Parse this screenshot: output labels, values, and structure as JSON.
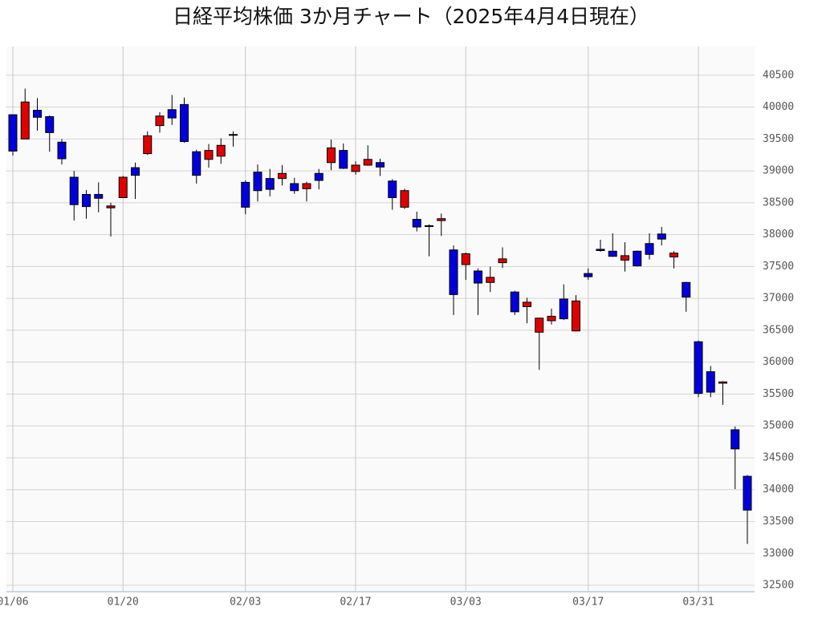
{
  "chart_data": {
    "type": "candlestick",
    "title": "日経平均株価 3か月チャート（2025年4月4日現在）",
    "categories": [
      "01/06",
      null,
      null,
      null,
      null,
      null,
      null,
      null,
      null,
      "01/20",
      null,
      null,
      null,
      null,
      null,
      null,
      null,
      null,
      null,
      "02/03",
      null,
      null,
      null,
      null,
      null,
      null,
      null,
      null,
      "02/17",
      null,
      null,
      null,
      null,
      null,
      null,
      null,
      null,
      "03/03",
      null,
      null,
      null,
      null,
      null,
      null,
      null,
      null,
      null,
      "03/17",
      null,
      null,
      null,
      null,
      null,
      null,
      null,
      null,
      "03/31",
      null,
      null,
      null,
      null
    ],
    "open": [
      39880,
      39500,
      39950,
      39850,
      39450,
      38900,
      38630,
      38630,
      38420,
      38580,
      39050,
      39270,
      39710,
      39960,
      40040,
      39300,
      39180,
      39230,
      39560,
      38820,
      38980,
      38880,
      38880,
      38800,
      38720,
      38960,
      39130,
      39320,
      38990,
      39090,
      39130,
      38840,
      38430,
      38240,
      38130,
      38220,
      37760,
      37530,
      37430,
      37250,
      37560,
      37100,
      36870,
      36470,
      36650,
      36990,
      36490,
      37390,
      37770,
      37740,
      37600,
      37740,
      37860,
      38010,
      37650,
      37250,
      36320,
      35850,
      35670,
      34940,
      34210
    ],
    "high": [
      39880,
      40290,
      40140,
      39870,
      39500,
      39000,
      38700,
      38820,
      38500,
      38920,
      39130,
      39620,
      39920,
      40190,
      40150,
      39330,
      39420,
      39510,
      39620,
      38850,
      39100,
      39030,
      39090,
      38890,
      38830,
      39030,
      39490,
      39430,
      39150,
      39400,
      39190,
      38870,
      38720,
      38360,
      38160,
      38330,
      37830,
      37720,
      37470,
      37500,
      37800,
      37120,
      37010,
      36700,
      36840,
      37220,
      37050,
      37470,
      37920,
      38020,
      37880,
      37750,
      38020,
      38120,
      37740,
      37260,
      36340,
      35940,
      35700,
      34990,
      34230
    ],
    "low": [
      39240,
      39500,
      39630,
      39300,
      39100,
      38220,
      38250,
      38350,
      37970,
      38580,
      38560,
      39250,
      39600,
      39720,
      39440,
      38800,
      39050,
      39110,
      39380,
      38320,
      38520,
      38600,
      38770,
      38640,
      38520,
      38710,
      39010,
      39030,
      38940,
      39080,
      38920,
      38390,
      38400,
      38050,
      37660,
      37980,
      36740,
      37290,
      36740,
      37100,
      37480,
      36740,
      36610,
      35880,
      36590,
      36660,
      36480,
      37290,
      37730,
      37650,
      37420,
      37500,
      37610,
      37830,
      37470,
      36790,
      35450,
      35450,
      35330,
      34010,
      33150
    ],
    "close": [
      39310,
      40080,
      39840,
      39600,
      39190,
      38470,
      38440,
      38570,
      38450,
      38900,
      38930,
      39550,
      39860,
      39830,
      39460,
      38930,
      39320,
      39400,
      39570,
      38430,
      38690,
      38710,
      38960,
      38690,
      38800,
      38850,
      39360,
      39040,
      39090,
      39180,
      39060,
      38580,
      38690,
      38120,
      38140,
      38250,
      37060,
      37700,
      37240,
      37330,
      37620,
      36790,
      36940,
      36690,
      36720,
      36680,
      36960,
      37340,
      37750,
      37660,
      37670,
      37510,
      37690,
      37930,
      37710,
      37020,
      35510,
      35530,
      35690,
      34640,
      33680
    ],
    "up_color": "#e00000",
    "down_color": "#0000dd",
    "ylim": [
      32400,
      40950
    ],
    "yticks": [
      32500,
      33000,
      33500,
      34000,
      34500,
      35000,
      35500,
      36000,
      36500,
      37000,
      37500,
      38000,
      38500,
      39000,
      39500,
      40000,
      40500
    ],
    "grid": true
  }
}
